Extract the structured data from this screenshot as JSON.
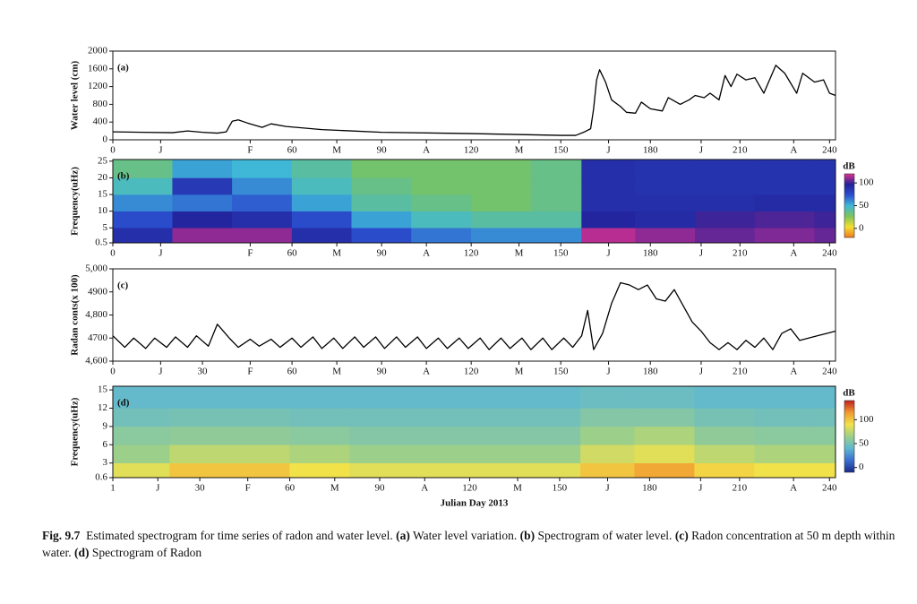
{
  "chart_data": [
    {
      "type": "line",
      "panel_label": "(a)",
      "ylabel": "Water level (cm)",
      "color": "#000000",
      "xlim": [
        0,
        242
      ],
      "ylim": [
        0,
        2000
      ],
      "yticks": [
        0,
        400,
        800,
        1200,
        1600,
        2000
      ],
      "xticks": [
        0,
        {
          "value": 16,
          "label": "J"
        },
        {
          "value": 46,
          "label": "F"
        },
        60,
        {
          "value": 75,
          "label": "M"
        },
        90,
        {
          "value": 105,
          "label": "A"
        },
        120,
        {
          "value": 136,
          "label": "M"
        },
        150,
        {
          "value": 166,
          "label": "J"
        },
        180,
        {
          "value": 197,
          "label": "J"
        },
        210,
        {
          "value": 228,
          "label": "A"
        },
        240
      ],
      "x": [
        0,
        10,
        20,
        25,
        30,
        35,
        38,
        40,
        42,
        45,
        50,
        53,
        58,
        70,
        90,
        120,
        150,
        155,
        158,
        160,
        161,
        162,
        163,
        165,
        167,
        170,
        172,
        175,
        177,
        180,
        184,
        186,
        190,
        193,
        195,
        198,
        200,
        203,
        205,
        207,
        209,
        212,
        215,
        218,
        222,
        225,
        229,
        231,
        235,
        238,
        240,
        242
      ],
      "values": [
        180,
        170,
        160,
        200,
        170,
        150,
        180,
        420,
        450,
        380,
        280,
        360,
        300,
        230,
        170,
        140,
        100,
        100,
        180,
        250,
        700,
        1350,
        1580,
        1300,
        900,
        750,
        620,
        600,
        850,
        700,
        650,
        950,
        800,
        900,
        1000,
        950,
        1050,
        900,
        1450,
        1200,
        1480,
        1350,
        1400,
        1050,
        1680,
        1500,
        1050,
        1500,
        1300,
        1350,
        1050,
        1000
      ]
    },
    {
      "type": "heatmap",
      "panel_label": "(b)",
      "ylabel": "Frequency(uHz)",
      "xlim": [
        0,
        242
      ],
      "ylim": [
        0.5,
        25.5
      ],
      "yticks": [
        0.5,
        5,
        10,
        15,
        20,
        25
      ],
      "xticks": [
        0,
        {
          "value": 16,
          "label": "J"
        },
        {
          "value": 46,
          "label": "F"
        },
        60,
        {
          "value": 75,
          "label": "M"
        },
        90,
        {
          "value": 105,
          "label": "A"
        },
        120,
        {
          "value": 136,
          "label": "M"
        },
        150,
        {
          "value": 166,
          "label": "J"
        },
        180,
        {
          "value": 197,
          "label": "J"
        },
        210,
        {
          "value": 228,
          "label": "A"
        },
        240
      ],
      "x_edges": [
        0,
        20,
        40,
        60,
        80,
        100,
        120,
        140,
        157,
        175,
        195,
        215,
        235,
        242
      ],
      "y_edges": [
        0.5,
        5,
        10,
        15,
        20,
        25.5
      ],
      "z": [
        [
          90,
          110,
          110,
          90,
          75,
          65,
          60,
          60,
          115,
          110,
          105,
          108,
          105
        ],
        [
          75,
          95,
          90,
          75,
          55,
          45,
          40,
          40,
          95,
          92,
          100,
          102,
          100
        ],
        [
          60,
          65,
          70,
          55,
          40,
          35,
          30,
          35,
          90,
          90,
          90,
          92,
          92
        ],
        [
          45,
          85,
          60,
          45,
          35,
          30,
          30,
          35,
          90,
          88,
          88,
          88,
          88
        ],
        [
          35,
          55,
          50,
          40,
          30,
          30,
          30,
          35,
          90,
          88,
          88,
          88,
          88
        ]
      ],
      "zlim": [
        -20,
        120
      ],
      "zticks": [
        0,
        50,
        100
      ],
      "zlabel": "dB",
      "colormap": [
        "#f07a20",
        "#f2e030",
        "#7cc45a",
        "#3fb8d8",
        "#2b4fcf",
        "#22229a",
        "#e0308f"
      ]
    },
    {
      "type": "line",
      "panel_label": "(c)",
      "ylabel": "Radan conts(x 100)",
      "color": "#000000",
      "xlim": [
        0,
        242
      ],
      "ylim": [
        4600,
        5000
      ],
      "yticks": [
        {
          "value": 4600,
          "label": "4,600"
        },
        4700,
        {
          "value": 4800,
          "label": "4,800"
        },
        4900,
        {
          "value": 5000,
          "label": "5,000"
        }
      ],
      "xticks": [
        0,
        {
          "value": 16,
          "label": "J"
        },
        30,
        {
          "value": 46,
          "label": "F"
        },
        60,
        {
          "value": 75,
          "label": "M"
        },
        90,
        {
          "value": 105,
          "label": "A"
        },
        120,
        {
          "value": 136,
          "label": "M"
        },
        150,
        {
          "value": 166,
          "label": "J"
        },
        180,
        {
          "value": 197,
          "label": "J"
        },
        210,
        {
          "value": 228,
          "label": "A"
        },
        240
      ],
      "x": [
        0,
        4,
        7,
        11,
        14,
        18,
        21,
        25,
        28,
        32,
        35,
        39,
        42,
        46,
        49,
        53,
        56,
        60,
        63,
        67,
        70,
        74,
        77,
        81,
        84,
        88,
        91,
        95,
        98,
        102,
        105,
        109,
        112,
        116,
        119,
        123,
        126,
        130,
        133,
        137,
        140,
        144,
        147,
        151,
        154,
        157,
        159,
        161,
        164,
        167,
        170,
        173,
        176,
        179,
        182,
        185,
        188,
        191,
        194,
        197,
        200,
        203,
        206,
        209,
        212,
        215,
        218,
        221,
        224,
        227,
        230,
        233,
        236,
        239,
        242
      ],
      "values": [
        4710,
        4660,
        4700,
        4655,
        4700,
        4660,
        4705,
        4660,
        4710,
        4665,
        4760,
        4700,
        4660,
        4695,
        4665,
        4695,
        4660,
        4700,
        4660,
        4705,
        4655,
        4700,
        4655,
        4705,
        4660,
        4705,
        4655,
        4705,
        4660,
        4705,
        4655,
        4700,
        4655,
        4700,
        4655,
        4700,
        4650,
        4700,
        4655,
        4700,
        4650,
        4700,
        4650,
        4700,
        4660,
        4710,
        4820,
        4650,
        4720,
        4850,
        4940,
        4930,
        4910,
        4930,
        4870,
        4860,
        4910,
        4840,
        4770,
        4730,
        4680,
        4650,
        4680,
        4650,
        4690,
        4660,
        4700,
        4650,
        4720,
        4740,
        4690,
        4700,
        4710,
        4720,
        4730
      ]
    },
    {
      "type": "heatmap",
      "panel_label": "(d)",
      "ylabel": "Frequency(uHz)",
      "xlabel": "Julian Day 2013",
      "xlim": [
        1,
        242
      ],
      "ylim": [
        0.6,
        15.6
      ],
      "yticks": [
        0.6,
        3,
        6,
        9,
        12,
        15
      ],
      "xticks": [
        1,
        {
          "value": 16,
          "label": "J"
        },
        30,
        {
          "value": 46,
          "label": "F"
        },
        60,
        {
          "value": 75,
          "label": "M"
        },
        90,
        {
          "value": 105,
          "label": "A"
        },
        120,
        {
          "value": 136,
          "label": "M"
        },
        150,
        {
          "value": 166,
          "label": "J"
        },
        180,
        {
          "value": 197,
          "label": "J"
        },
        210,
        {
          "value": 228,
          "label": "A"
        },
        240
      ],
      "x_edges": [
        1,
        20,
        40,
        60,
        80,
        100,
        120,
        140,
        157,
        175,
        195,
        215,
        235,
        242
      ],
      "y_edges": [
        0.6,
        3,
        6,
        9,
        12,
        15.6
      ],
      "z": [
        [
          85,
          100,
          100,
          90,
          85,
          85,
          85,
          85,
          100,
          110,
          95,
          90,
          90
        ],
        [
          65,
          75,
          75,
          70,
          65,
          65,
          65,
          65,
          80,
          85,
          75,
          70,
          70
        ],
        [
          58,
          60,
          60,
          58,
          55,
          55,
          55,
          55,
          65,
          70,
          60,
          58,
          58
        ],
        [
          48,
          50,
          50,
          48,
          48,
          48,
          48,
          48,
          55,
          55,
          50,
          48,
          48
        ],
        [
          42,
          42,
          42,
          42,
          42,
          42,
          42,
          42,
          45,
          45,
          42,
          42,
          42
        ]
      ],
      "zlim": [
        -10,
        140
      ],
      "zticks": [
        0,
        50,
        100
      ],
      "zlabel": "dB",
      "colormap": [
        "#1a2a8a",
        "#3a6fd0",
        "#5fb8d0",
        "#9ccf8a",
        "#f2e24a",
        "#f29a30",
        "#c02020"
      ]
    }
  ],
  "caption": {
    "runs": [
      {
        "text": "Fig. 9.7",
        "bold": true
      },
      {
        "text": "  Estimated spectrogram for time series of radon and water level. ",
        "bold": false
      },
      {
        "text": "(a)",
        "bold": true
      },
      {
        "text": " Water level variation. ",
        "bold": false
      },
      {
        "text": "(b)",
        "bold": true
      },
      {
        "text": " Spectrogram of water level. ",
        "bold": false
      },
      {
        "text": "(c)",
        "bold": true
      },
      {
        "text": " Radon concentration at 50 m depth within water. ",
        "bold": false
      },
      {
        "text": "(d)",
        "bold": true
      },
      {
        "text": " Spectrogram of Radon",
        "bold": false
      }
    ]
  }
}
